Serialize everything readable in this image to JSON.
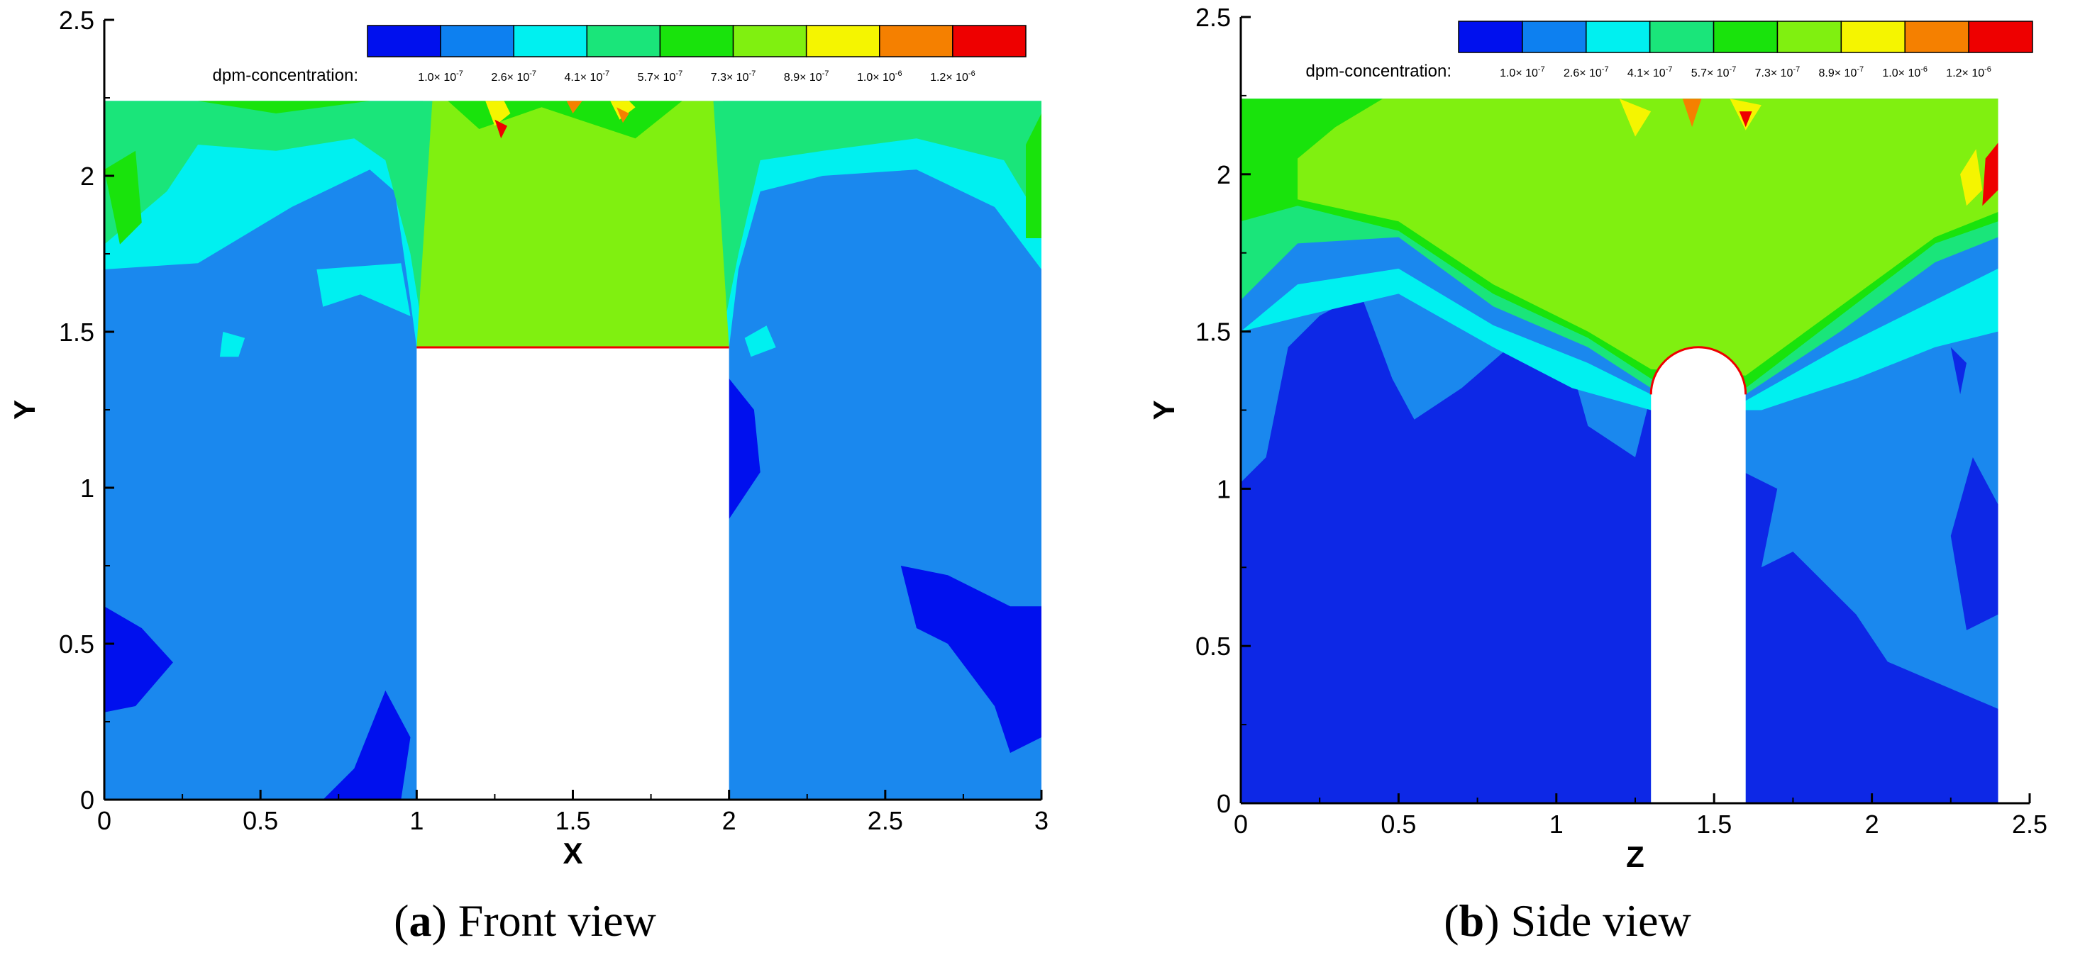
{
  "colors": {
    "levels": [
      "#0010ee",
      "#0d80f0",
      "#00f0f0",
      "#1ae57a",
      "#19e30c",
      "#80f010",
      "#f5f500",
      "#f58000",
      "#ee0000"
    ],
    "domain_bg": "#1a88ee",
    "deep_blue": "#0d28e6"
  },
  "legend": {
    "title": "dpm-concentration:",
    "ticks": [
      {
        "mant": "1.0× 10",
        "exp": "-7"
      },
      {
        "mant": "2.6× 10",
        "exp": "-7"
      },
      {
        "mant": "4.1× 10",
        "exp": "-7"
      },
      {
        "mant": "5.7× 10",
        "exp": "-7"
      },
      {
        "mant": "7.3× 10",
        "exp": "-7"
      },
      {
        "mant": "8.9× 10",
        "exp": "-7"
      },
      {
        "mant": "1.0× 10",
        "exp": "-6"
      },
      {
        "mant": "1.2× 10",
        "exp": "-6"
      }
    ]
  },
  "chart_data": [
    {
      "type": "heatmap",
      "panel": "a",
      "caption_letter": "a",
      "caption_text": "Front view",
      "xlabel": "X",
      "ylabel": "Y",
      "xlim": [
        0,
        3
      ],
      "ylim": [
        0,
        2.5
      ],
      "xticks": [
        "0",
        "0.5",
        "1",
        "1.5",
        "2",
        "2.5",
        "3"
      ],
      "yticks": [
        "0",
        "0.5",
        "1",
        "1.5",
        "2",
        "2.5"
      ],
      "variable": "dpm-concentration",
      "domain_top": 2.24,
      "obstacle": {
        "shape": "rectangle",
        "x": [
          1,
          2
        ],
        "y": [
          0,
          1.45
        ]
      },
      "plume": {
        "x_bottom": [
          1,
          2
        ],
        "x_top": [
          1.05,
          1.95
        ],
        "y": [
          1.45,
          2.24
        ],
        "level": "8.9e-7"
      }
    },
    {
      "type": "heatmap",
      "panel": "b",
      "caption_letter": "b",
      "caption_text": "Side view",
      "xlabel": "Z",
      "ylabel": "Y",
      "xlim": [
        0,
        2.5
      ],
      "ylim": [
        0,
        2.5
      ],
      "xticks": [
        "0",
        "0.5",
        "1",
        "1.5",
        "2",
        "2.5"
      ],
      "yticks": [
        "0",
        "0.5",
        "1",
        "1.5",
        "2",
        "2.5"
      ],
      "variable": "dpm-concentration",
      "domain_extent": [
        0,
        2.4
      ],
      "domain_top": 2.24,
      "obstacle": {
        "shape": "rounded",
        "x": [
          1.3,
          1.6
        ],
        "y": [
          0,
          1.45
        ]
      },
      "plume": {
        "x": [
          0.18,
          2.4
        ],
        "y": [
          1.3,
          2.24
        ],
        "level": "8.9e-7"
      }
    }
  ]
}
